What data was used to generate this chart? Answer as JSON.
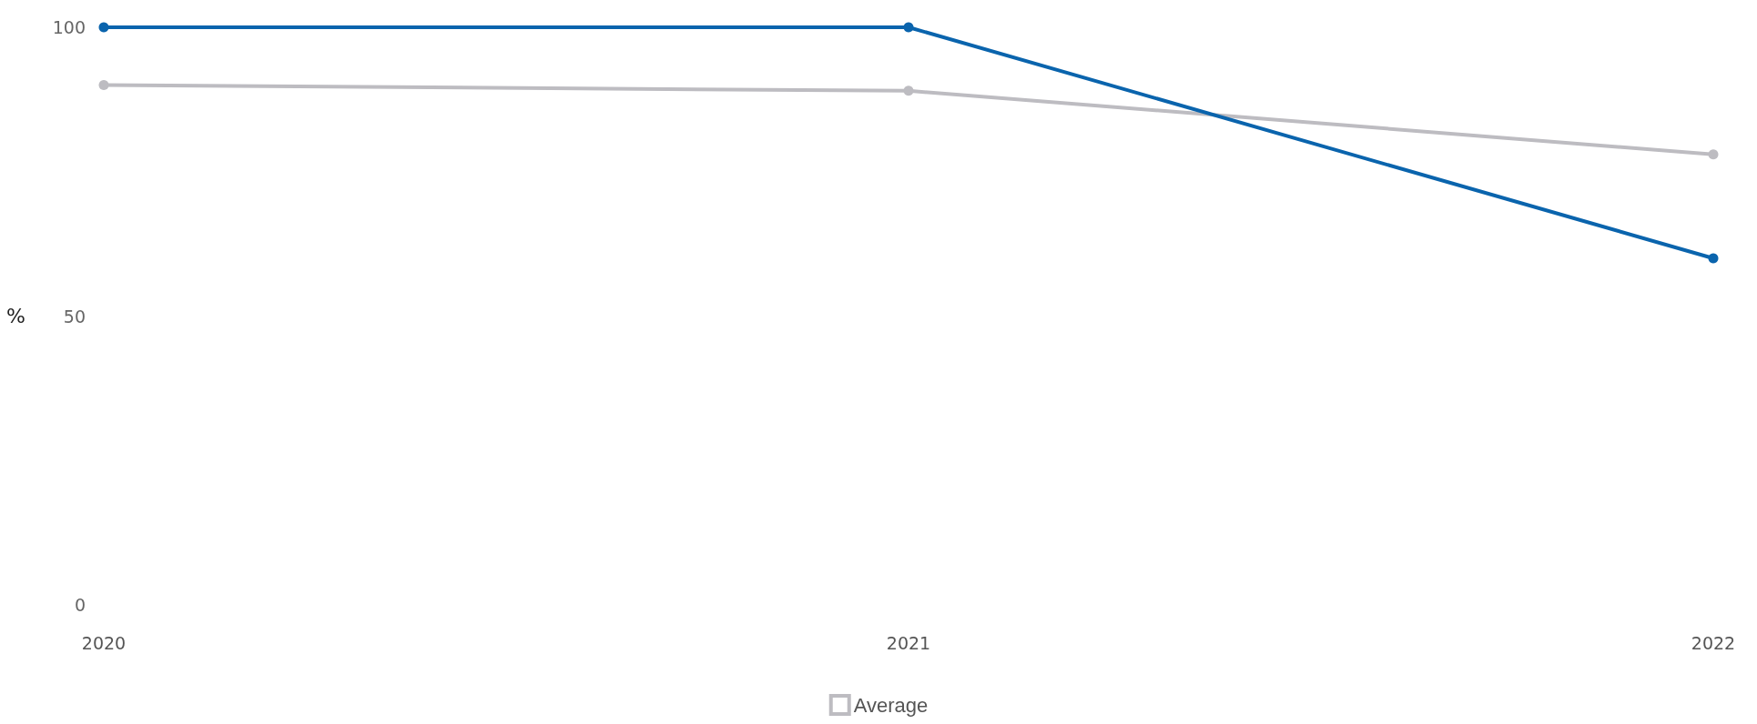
{
  "chart_data": {
    "type": "line",
    "ylabel": "%",
    "categories": [
      "2020",
      "2021",
      "2022"
    ],
    "series": [
      {
        "color": "#0a64ad",
        "values": [
          100,
          100,
          60
        ]
      },
      {
        "name": "Average",
        "color": "#bdbcc1",
        "values": [
          90,
          89,
          78
        ]
      }
    ],
    "ylim": [
      0,
      100
    ],
    "yticks": [
      0,
      50,
      100
    ],
    "grid": false,
    "legend": "bottom",
    "marker": "circle",
    "line_style": "solid"
  }
}
